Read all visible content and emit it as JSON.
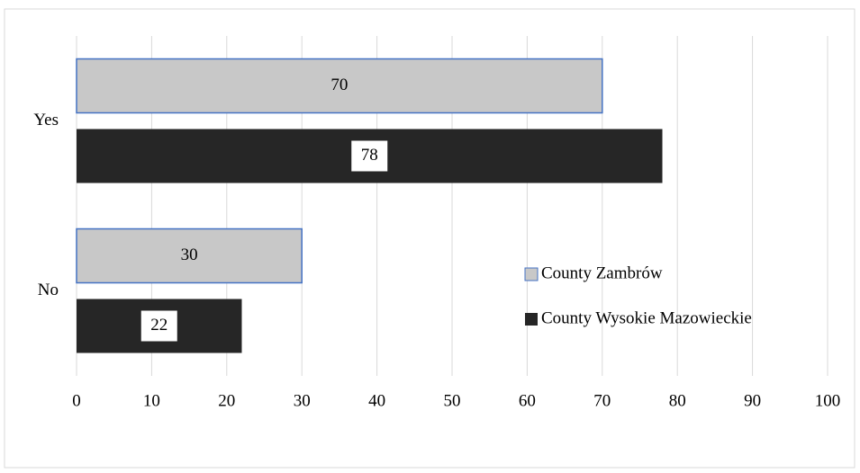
{
  "chart_data": {
    "type": "bar",
    "orientation": "horizontal",
    "categories": [
      "Yes",
      "No"
    ],
    "series": [
      {
        "name": "County Zambrów",
        "color": "#c8c8c8",
        "values": [
          70,
          30
        ]
      },
      {
        "name": "County Wysokie Mazowieckie",
        "color": "#262626",
        "values": [
          78,
          22
        ]
      }
    ],
    "xlim": [
      0,
      100
    ],
    "xticks": [
      0,
      10,
      20,
      30,
      40,
      50,
      60,
      70,
      80,
      90,
      100
    ],
    "grid": true,
    "legend": "right"
  }
}
